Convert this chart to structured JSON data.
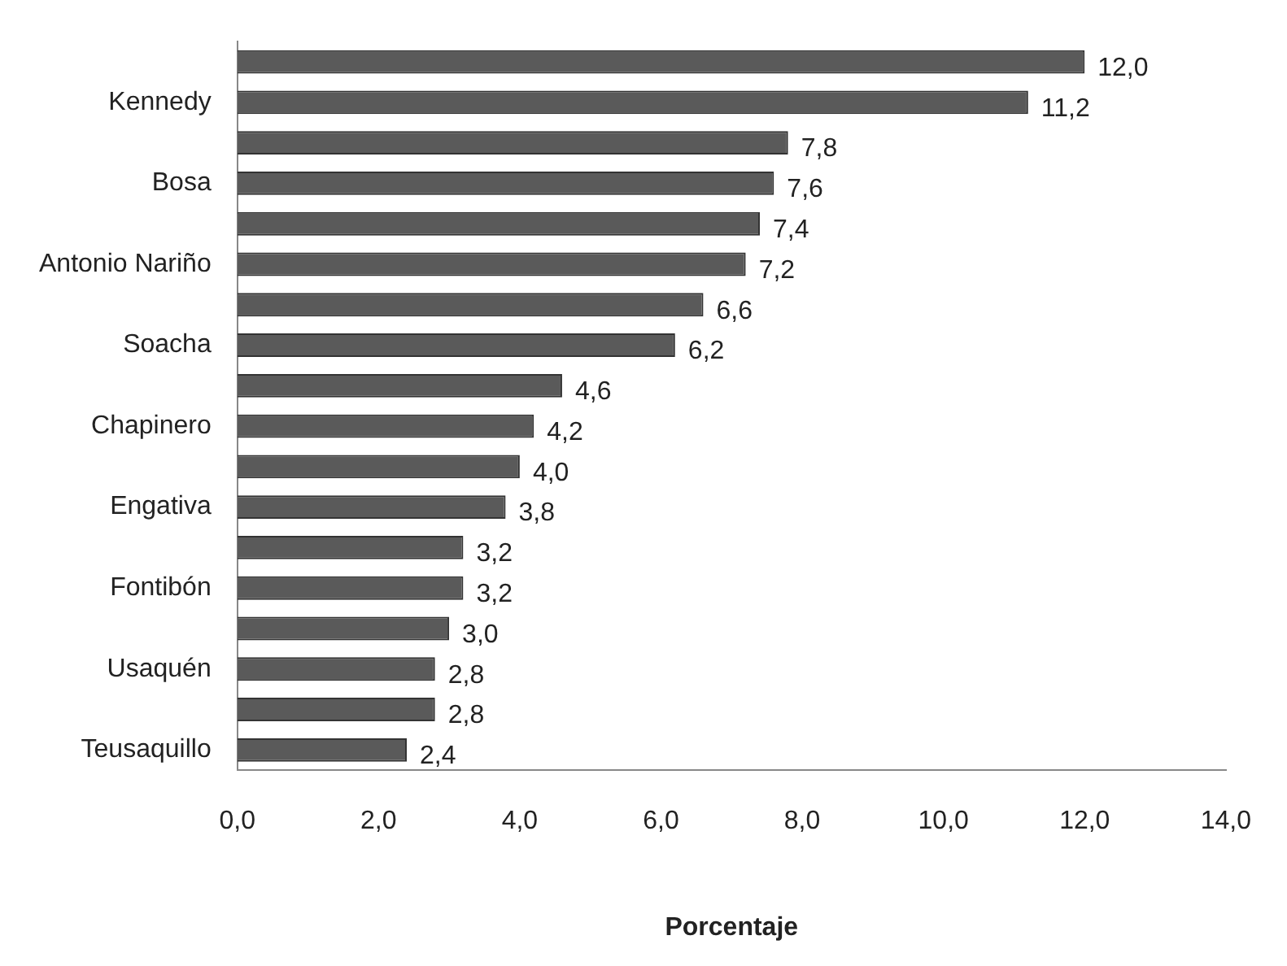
{
  "chart_data": {
    "type": "bar",
    "orientation": "horizontal",
    "xlabel": "Porcentaje",
    "categories": [
      null,
      "Kennedy",
      null,
      "Bosa",
      null,
      "Antonio Nariño",
      null,
      "Soacha",
      null,
      "Chapinero",
      null,
      "Engativa",
      null,
      "Fontibón",
      null,
      "Usaquén",
      null,
      "Teusaquillo"
    ],
    "values": [
      12.0,
      11.2,
      7.8,
      7.6,
      7.4,
      7.2,
      6.6,
      6.2,
      4.6,
      4.2,
      4.0,
      3.8,
      3.2,
      3.2,
      3.0,
      2.8,
      2.8,
      2.4
    ],
    "value_labels": [
      "12,0",
      "11,2",
      "7,8",
      "7,6",
      "7,4",
      "7,2",
      "6,6",
      "6,2",
      "4,6",
      "4,2",
      "4,0",
      "3,8",
      "3,2",
      "3,2",
      "3,0",
      "2,8",
      "2,8",
      "2,4"
    ],
    "color": "#5a5a5a",
    "xlim": [
      0,
      14
    ],
    "xticks": [
      {
        "value": 0,
        "label": "0,0"
      },
      {
        "value": 2,
        "label": "2,0"
      },
      {
        "value": 4,
        "label": "4,0"
      },
      {
        "value": 6,
        "label": "6,0"
      },
      {
        "value": 8,
        "label": "8,0"
      },
      {
        "value": 10,
        "label": "10,0"
      },
      {
        "value": 12,
        "label": "12,0"
      },
      {
        "value": 14,
        "label": "14,0"
      }
    ]
  }
}
